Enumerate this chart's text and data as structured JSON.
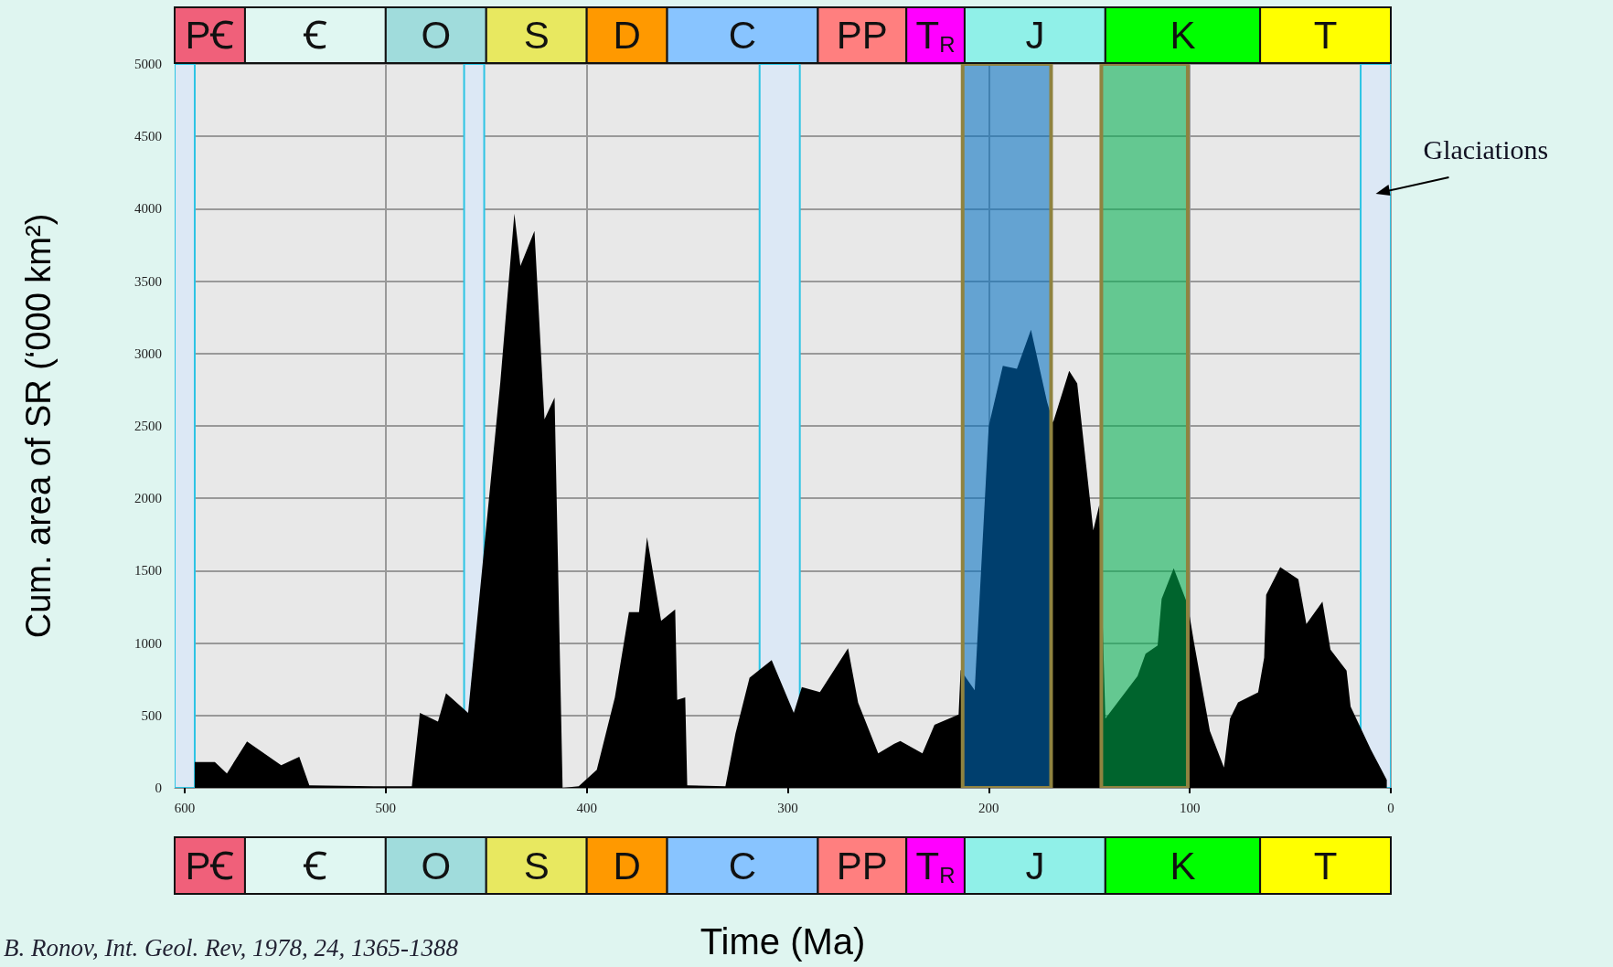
{
  "chart_data": {
    "type": "area",
    "xlabel": "Time (Ma)",
    "ylabel": "Cum. area of SR (‘000 km²)",
    "x": [
      595,
      585,
      579,
      569,
      552,
      543,
      538,
      506,
      487,
      483,
      474,
      470,
      459,
      443,
      436,
      433,
      426,
      421,
      416,
      412,
      404,
      395,
      386,
      379,
      374,
      370,
      363,
      356,
      355,
      351,
      350,
      331,
      326,
      319,
      308,
      297,
      293,
      284,
      270,
      265,
      255,
      247,
      244,
      233,
      227,
      215,
      214,
      207,
      200,
      193,
      186,
      179,
      171,
      168,
      160,
      156,
      148,
      145,
      142,
      126,
      122,
      116,
      114,
      108,
      101,
      98,
      90,
      83,
      80,
      76,
      66,
      63,
      62,
      55,
      46,
      42,
      34,
      30,
      22,
      20,
      10,
      2
    ],
    "values": [
      179,
      179,
      100,
      321,
      157,
      214,
      18,
      11,
      11,
      518,
      457,
      654,
      518,
      2800,
      3967,
      3605,
      3847,
      2545,
      2695,
      0,
      11,
      125,
      625,
      1214,
      1214,
      1732,
      1153,
      1232,
      607,
      625,
      18,
      11,
      375,
      761,
      882,
      518,
      696,
      661,
      964,
      589,
      239,
      304,
      323,
      239,
      435,
      506,
      815,
      674,
      2500,
      2915,
      2894,
      3164,
      2666,
      2524,
      2880,
      2794,
      1778,
      1955,
      478,
      772,
      927,
      983,
      1306,
      1517,
      1264,
      1011,
      393,
      140,
      478,
      590,
      660,
      899,
      1334,
      1525,
      1441,
      1132,
      1287,
      955,
      809,
      562,
      267,
      56
    ],
    "color": "#000000",
    "xlim": [
      605,
      0
    ],
    "xticks": [
      600,
      500,
      400,
      300,
      200,
      100,
      0
    ],
    "ylim": [
      0,
      5000
    ],
    "yticks": [
      0,
      500,
      1000,
      1500,
      2000,
      2500,
      3000,
      3500,
      4000,
      4500,
      5000
    ],
    "grid": true,
    "bands": [
      {
        "axis": "x",
        "from": 605,
        "to": 595,
        "color": "#dce8f5"
      },
      {
        "axis": "x",
        "from": 461,
        "to": 451,
        "color": "#dce8f5"
      },
      {
        "axis": "x",
        "from": 314,
        "to": 294,
        "color": "#dce8f5"
      },
      {
        "axis": "x",
        "from": 15,
        "to": 0,
        "color": "#dce8f5"
      },
      {
        "axis": "x",
        "from": 213,
        "to": 169,
        "color": "#006ec1"
      },
      {
        "axis": "x",
        "from": 144,
        "to": 101,
        "color": "#00af4f"
      }
    ],
    "annotations": [
      "Glaciations",
      "PꞒ",
      "Ꞓ",
      "O",
      "S",
      "D",
      "C",
      "PP",
      "T$_{R}$",
      "J",
      "K",
      "T",
      "B. Ronov, Int. Geol. Rev, 1978, 24, 1365-1388"
    ]
  }
}
